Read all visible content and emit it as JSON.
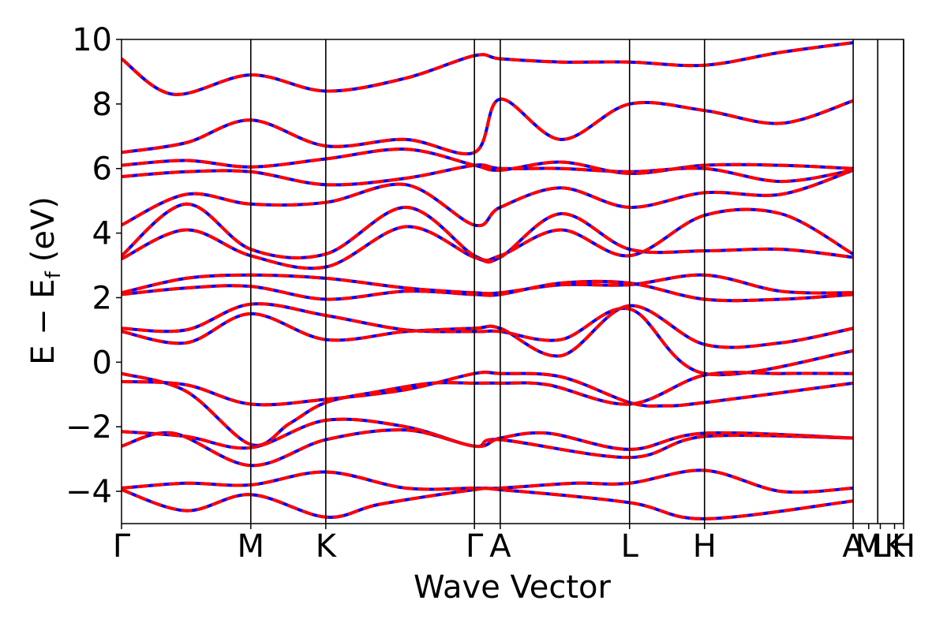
{
  "chart_data": {
    "type": "line",
    "xlabel": "Wave Vector",
    "ylabel": "E − E",
    "ylabel_sub": "f",
    "ylabel_unit": "(eV)",
    "ylim": [
      -5,
      10
    ],
    "yticks": [
      {
        "value": 10,
        "label": "10"
      },
      {
        "value": 8,
        "label": "8"
      },
      {
        "value": 6,
        "label": "6"
      },
      {
        "value": 4,
        "label": "4"
      },
      {
        "value": 2,
        "label": "2"
      },
      {
        "value": 0,
        "label": "0"
      },
      {
        "value": -2,
        "label": "−2"
      },
      {
        "value": -4,
        "label": "−4"
      }
    ],
    "xlim": [
      0,
      6.05
    ],
    "kpoints": [
      {
        "label": "Γ",
        "x": 0.0
      },
      {
        "label": "M",
        "x": 1.0
      },
      {
        "label": "K",
        "x": 1.58
      },
      {
        "label": "Γ",
        "x": 2.73
      },
      {
        "label": "A",
        "x": 2.93
      },
      {
        "label": "L",
        "x": 3.93
      },
      {
        "label": "H",
        "x": 4.51
      },
      {
        "label": "A",
        "x": 5.66
      },
      {
        "label": "M",
        "x": 5.78
      },
      {
        "label": "L",
        "x": 5.87
      },
      {
        "label": "K",
        "x": 5.98
      },
      {
        "label": "H",
        "x": 6.05
      }
    ],
    "vlines": [
      1.0,
      1.58,
      2.73,
      2.93,
      3.93,
      4.51,
      5.66,
      5.85,
      6.05
    ],
    "grid": false,
    "series": [
      {
        "color": "#0000ff",
        "style": "solid",
        "bands": [
          [
            [
              0,
              -0.35
            ],
            [
              0.5,
              -0.9
            ],
            [
              1.0,
              -2.55
            ],
            [
              1.3,
              -1.9
            ],
            [
              1.58,
              -1.25
            ],
            [
              2.0,
              -0.9
            ],
            [
              2.4,
              -0.65
            ],
            [
              2.73,
              -0.65
            ],
            [
              2.93,
              -0.65
            ],
            [
              3.3,
              -0.7
            ],
            [
              3.93,
              -1.3
            ],
            [
              4.51,
              -0.4
            ],
            [
              5.1,
              -0.35
            ],
            [
              5.66,
              -0.35
            ]
          ],
          [
            [
              0,
              -0.6
            ],
            [
              0.5,
              -0.7
            ],
            [
              1.0,
              -1.3
            ],
            [
              1.58,
              -1.15
            ],
            [
              2.2,
              -0.85
            ],
            [
              2.73,
              -0.35
            ],
            [
              2.93,
              -0.35
            ],
            [
              3.4,
              -0.45
            ],
            [
              3.93,
              -1.25
            ],
            [
              4.2,
              -1.35
            ],
            [
              4.51,
              -1.25
            ],
            [
              5.66,
              -0.65
            ]
          ],
          [
            [
              0,
              -2.15
            ],
            [
              0.5,
              -2.3
            ],
            [
              1.0,
              -2.65
            ],
            [
              1.58,
              -1.8
            ],
            [
              2.2,
              -2.0
            ],
            [
              2.73,
              -2.6
            ],
            [
              2.93,
              -2.35
            ],
            [
              3.3,
              -2.2
            ],
            [
              3.93,
              -2.7
            ],
            [
              4.51,
              -2.2
            ],
            [
              5.66,
              -2.35
            ]
          ],
          [
            [
              0,
              -2.6
            ],
            [
              0.4,
              -2.2
            ],
            [
              1.0,
              -3.2
            ],
            [
              1.58,
              -2.4
            ],
            [
              2.2,
              -2.1
            ],
            [
              2.73,
              -2.6
            ],
            [
              2.93,
              -2.4
            ],
            [
              3.93,
              -2.95
            ],
            [
              4.51,
              -2.3
            ],
            [
              5.66,
              -2.35
            ]
          ],
          [
            [
              0,
              -3.9
            ],
            [
              0.5,
              -3.75
            ],
            [
              1.0,
              -3.8
            ],
            [
              1.58,
              -3.4
            ],
            [
              2.2,
              -3.9
            ],
            [
              2.73,
              -3.9
            ],
            [
              2.93,
              -3.9
            ],
            [
              3.5,
              -3.75
            ],
            [
              3.93,
              -3.75
            ],
            [
              4.51,
              -3.35
            ],
            [
              5.1,
              -4.0
            ],
            [
              5.66,
              -3.9
            ]
          ],
          [
            [
              0,
              -3.95
            ],
            [
              0.5,
              -4.6
            ],
            [
              1.0,
              -4.1
            ],
            [
              1.58,
              -4.8
            ],
            [
              2.0,
              -4.4
            ],
            [
              2.73,
              -3.95
            ],
            [
              2.93,
              -3.95
            ],
            [
              3.93,
              -4.35
            ],
            [
              4.51,
              -4.85
            ],
            [
              5.66,
              -4.3
            ]
          ],
          [
            [
              0,
              0.95
            ],
            [
              0.5,
              0.6
            ],
            [
              1.0,
              1.5
            ],
            [
              1.58,
              0.7
            ],
            [
              2.2,
              0.95
            ],
            [
              2.73,
              1.05
            ],
            [
              2.93,
              1.05
            ],
            [
              3.4,
              0.2
            ],
            [
              3.93,
              1.75
            ],
            [
              4.51,
              0.55
            ],
            [
              5.1,
              0.6
            ],
            [
              5.66,
              1.05
            ]
          ],
          [
            [
              0,
              1.05
            ],
            [
              0.5,
              1.0
            ],
            [
              1.0,
              1.8
            ],
            [
              1.58,
              1.45
            ],
            [
              2.2,
              1.0
            ],
            [
              2.73,
              0.95
            ],
            [
              2.93,
              0.95
            ],
            [
              3.4,
              0.7
            ],
            [
              3.93,
              1.65
            ],
            [
              4.51,
              -0.35
            ],
            [
              5.66,
              0.35
            ]
          ],
          [
            [
              0,
              2.1
            ],
            [
              0.5,
              2.3
            ],
            [
              1.0,
              2.35
            ],
            [
              1.58,
              1.95
            ],
            [
              2.2,
              2.2
            ],
            [
              2.73,
              2.1
            ],
            [
              2.93,
              2.1
            ],
            [
              3.4,
              2.45
            ],
            [
              3.93,
              2.45
            ],
            [
              4.51,
              1.95
            ],
            [
              5.1,
              1.95
            ],
            [
              5.66,
              2.1
            ]
          ],
          [
            [
              0,
              2.15
            ],
            [
              0.5,
              2.6
            ],
            [
              1.0,
              2.7
            ],
            [
              1.58,
              2.6
            ],
            [
              2.2,
              2.3
            ],
            [
              2.73,
              2.15
            ],
            [
              2.93,
              2.15
            ],
            [
              3.4,
              2.4
            ],
            [
              3.93,
              2.4
            ],
            [
              4.51,
              2.7
            ],
            [
              5.1,
              2.2
            ],
            [
              5.66,
              2.15
            ]
          ],
          [
            [
              0,
              3.2
            ],
            [
              0.5,
              4.1
            ],
            [
              1.0,
              3.3
            ],
            [
              1.58,
              2.95
            ],
            [
              2.2,
              4.2
            ],
            [
              2.73,
              3.25
            ],
            [
              2.93,
              3.25
            ],
            [
              3.4,
              4.6
            ],
            [
              3.93,
              3.5
            ],
            [
              4.51,
              3.45
            ],
            [
              5.1,
              3.5
            ],
            [
              5.66,
              3.25
            ]
          ],
          [
            [
              0,
              3.3
            ],
            [
              0.5,
              4.9
            ],
            [
              1.0,
              3.5
            ],
            [
              1.58,
              3.35
            ],
            [
              2.2,
              4.8
            ],
            [
              2.73,
              3.3
            ],
            [
              2.93,
              3.3
            ],
            [
              3.4,
              4.1
            ],
            [
              3.93,
              3.3
            ],
            [
              4.51,
              4.55
            ],
            [
              5.1,
              4.6
            ],
            [
              5.66,
              3.35
            ]
          ],
          [
            [
              0,
              4.25
            ],
            [
              0.5,
              5.2
            ],
            [
              1.0,
              4.9
            ],
            [
              1.58,
              4.95
            ],
            [
              2.2,
              5.5
            ],
            [
              2.73,
              4.25
            ],
            [
              2.93,
              4.8
            ],
            [
              3.4,
              5.4
            ],
            [
              3.93,
              4.8
            ],
            [
              4.51,
              5.25
            ],
            [
              5.1,
              5.2
            ],
            [
              5.66,
              5.95
            ]
          ],
          [
            [
              0,
              5.75
            ],
            [
              0.5,
              5.9
            ],
            [
              1.0,
              5.9
            ],
            [
              1.58,
              5.5
            ],
            [
              2.2,
              5.7
            ],
            [
              2.73,
              6.1
            ],
            [
              2.93,
              6.0
            ],
            [
              3.4,
              6.0
            ],
            [
              3.93,
              5.9
            ],
            [
              4.51,
              6.0
            ],
            [
              5.1,
              5.6
            ],
            [
              5.66,
              5.95
            ]
          ],
          [
            [
              0,
              6.1
            ],
            [
              0.5,
              6.25
            ],
            [
              1.0,
              6.05
            ],
            [
              1.58,
              6.3
            ],
            [
              2.2,
              6.6
            ],
            [
              2.73,
              6.1
            ],
            [
              2.93,
              5.95
            ],
            [
              3.4,
              6.2
            ],
            [
              3.93,
              5.85
            ],
            [
              4.51,
              6.1
            ],
            [
              5.1,
              6.1
            ],
            [
              5.66,
              6.0
            ]
          ],
          [
            [
              0,
              6.5
            ],
            [
              0.5,
              6.8
            ],
            [
              1.0,
              7.5
            ],
            [
              1.58,
              6.7
            ],
            [
              2.2,
              6.9
            ],
            [
              2.73,
              6.5
            ],
            [
              2.93,
              8.15
            ],
            [
              3.4,
              6.9
            ],
            [
              3.93,
              8.0
            ],
            [
              4.51,
              7.8
            ],
            [
              5.1,
              7.4
            ],
            [
              5.66,
              8.1
            ]
          ],
          [
            [
              0,
              9.4
            ],
            [
              0.4,
              8.3
            ],
            [
              1.0,
              8.9
            ],
            [
              1.58,
              8.4
            ],
            [
              2.2,
              8.8
            ],
            [
              2.73,
              9.5
            ],
            [
              2.93,
              9.4
            ],
            [
              3.4,
              9.3
            ],
            [
              3.93,
              9.3
            ],
            [
              4.51,
              9.2
            ],
            [
              5.1,
              9.6
            ],
            [
              5.66,
              9.9
            ]
          ]
        ]
      },
      {
        "color": "#ff0000",
        "style": "dashed",
        "bands": "same as blue series"
      }
    ]
  }
}
